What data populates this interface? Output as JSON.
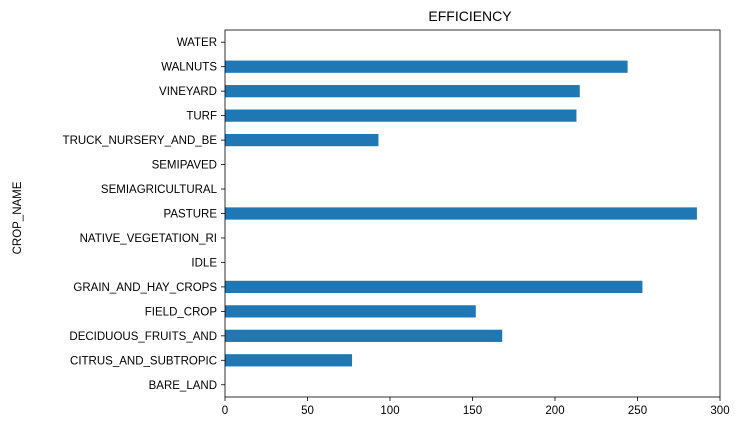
{
  "chart_data": {
    "type": "bar",
    "orientation": "horizontal",
    "title": "EFFICIENCY",
    "xlabel": "",
    "ylabel": "CROP_NAME",
    "xlim": [
      0,
      300
    ],
    "xticks": [
      0,
      50,
      100,
      150,
      200,
      250,
      300
    ],
    "categories": [
      "BARE_LAND",
      "CITRUS_AND_SUBTROPIC",
      "DECIDUOUS_FRUITS_AND",
      "FIELD_CROP",
      "GRAIN_AND_HAY_CROPS",
      "IDLE",
      "NATIVE_VEGETATION_RI",
      "PASTURE",
      "SEMIAGRICULTURAL",
      "SEMIPAVED",
      "TRUCK_NURSERY_AND_BE",
      "TURF",
      "VINEYARD",
      "WALNUTS",
      "WATER"
    ],
    "values": [
      0,
      77,
      168,
      152,
      253,
      0,
      0,
      286,
      0,
      0,
      93,
      213,
      215,
      244,
      0
    ],
    "grid": false,
    "legend": "none",
    "bar_color": "#1f77b4"
  }
}
